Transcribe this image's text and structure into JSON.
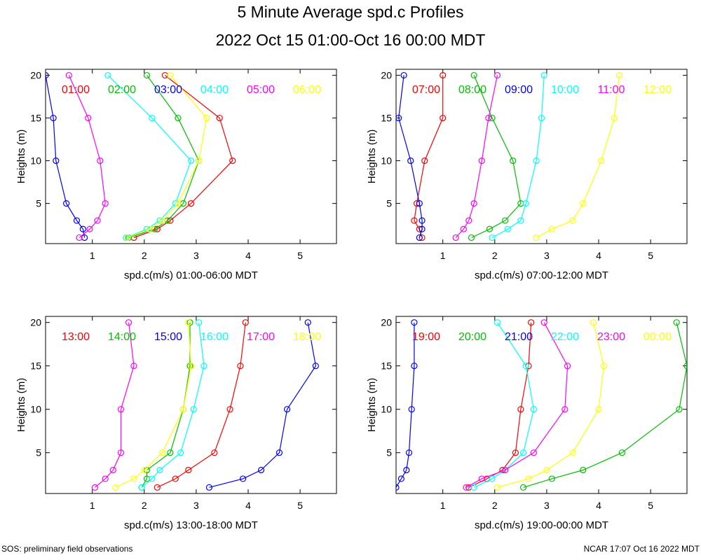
{
  "title": "5 Minute Average spd.c Profiles",
  "subtitle": "2022 Oct 15 01:00-Oct 16 00:00 MDT",
  "footer_left": "SOS: preliminary field observations",
  "footer_right": "NCAR 17:07 Oct 16 2022 MDT",
  "colors": [
    "#ff0000",
    "#00c000",
    "#0000ff",
    "#00ffff",
    "#ff00ff",
    "#ffff00"
  ],
  "chart_data": [
    {
      "type": "line",
      "xlabel": "spd.c(m/s) 01:00-06:00 MDT",
      "ylabel": "Heights (m)",
      "xlim": [
        0.1,
        5.7
      ],
      "ylim": [
        0.3,
        20.7
      ],
      "xticks": [
        1,
        2,
        3,
        4,
        5
      ],
      "yticks": [
        5,
        10,
        15,
        20
      ],
      "heights": [
        1,
        2,
        3,
        5,
        10,
        15,
        20
      ],
      "series": [
        {
          "name": "01:00",
          "values": [
            1.8,
            2.25,
            2.5,
            2.9,
            3.7,
            3.45,
            2.4
          ]
        },
        {
          "name": "02:00",
          "values": [
            1.7,
            2.2,
            2.45,
            2.75,
            3.05,
            2.65,
            2.05
          ]
        },
        {
          "name": "03:00",
          "values": [
            0.85,
            0.82,
            0.7,
            0.5,
            0.3,
            0.25,
            0.1
          ]
        },
        {
          "name": "04:00",
          "values": [
            1.65,
            2.05,
            2.3,
            2.6,
            2.9,
            2.15,
            1.3
          ]
        },
        {
          "name": "05:00",
          "values": [
            0.75,
            0.95,
            1.1,
            1.25,
            1.15,
            0.92,
            0.55
          ]
        },
        {
          "name": "06:00",
          "values": [
            1.68,
            2.1,
            2.35,
            2.65,
            3.05,
            3.2,
            2.5
          ]
        }
      ]
    },
    {
      "type": "line",
      "xlabel": "spd.c(m/s) 07:00-12:00 MDT",
      "ylabel": "Heights (m)",
      "xlim": [
        0.1,
        5.7
      ],
      "ylim": [
        0.3,
        20.7
      ],
      "xticks": [
        1,
        2,
        3,
        4,
        5
      ],
      "yticks": [
        5,
        10,
        15,
        20
      ],
      "heights": [
        1,
        2,
        3,
        5,
        10,
        15,
        20
      ],
      "series": [
        {
          "name": "07:00",
          "values": [
            0.6,
            0.55,
            0.45,
            0.5,
            0.65,
            1.0,
            1.0
          ]
        },
        {
          "name": "08:00",
          "values": [
            1.55,
            1.9,
            2.2,
            2.5,
            2.35,
            1.95,
            1.6
          ]
        },
        {
          "name": "09:00",
          "values": [
            0.55,
            0.6,
            0.6,
            0.55,
            0.38,
            0.15,
            0.25
          ]
        },
        {
          "name": "10:00",
          "values": [
            1.95,
            2.25,
            2.5,
            2.6,
            2.8,
            2.9,
            2.95
          ]
        },
        {
          "name": "11:00",
          "values": [
            1.25,
            1.4,
            1.5,
            1.6,
            1.75,
            1.88,
            2.05
          ]
        },
        {
          "name": "12:00",
          "values": [
            2.8,
            3.1,
            3.5,
            3.7,
            4.05,
            4.3,
            4.4
          ]
        }
      ]
    },
    {
      "type": "line",
      "xlabel": "spd.c(m/s) 13:00-18:00 MDT",
      "ylabel": "Heights (m)",
      "xlim": [
        0.1,
        5.7
      ],
      "ylim": [
        0.3,
        20.7
      ],
      "xticks": [
        1,
        2,
        3,
        4,
        5
      ],
      "yticks": [
        5,
        10,
        15,
        20
      ],
      "heights": [
        1,
        2,
        3,
        5,
        10,
        15,
        20
      ],
      "series": [
        {
          "name": "13:00",
          "values": [
            2.25,
            2.6,
            2.85,
            3.35,
            3.65,
            3.85,
            3.95
          ]
        },
        {
          "name": "14:00",
          "values": [
            1.95,
            2.05,
            2.05,
            2.5,
            2.75,
            2.88,
            2.88
          ]
        },
        {
          "name": "15:00",
          "values": [
            3.25,
            3.9,
            4.25,
            4.6,
            4.75,
            5.3,
            5.15
          ]
        },
        {
          "name": "16:00",
          "values": [
            1.95,
            2.15,
            2.3,
            2.7,
            2.95,
            3.15,
            3.05
          ]
        },
        {
          "name": "17:00",
          "values": [
            1.05,
            1.25,
            1.4,
            1.55,
            1.55,
            1.8,
            1.7
          ]
        },
        {
          "name": "18:00",
          "values": [
            1.45,
            1.8,
            2.0,
            2.35,
            2.75,
            2.9,
            2.85
          ]
        }
      ]
    },
    {
      "type": "line",
      "xlabel": "spd.c(m/s) 19:00-00:00 MDT",
      "ylabel": "Heights (m)",
      "xlim": [
        0.1,
        5.7
      ],
      "ylim": [
        0.3,
        20.7
      ],
      "xticks": [
        1,
        2,
        3,
        4,
        5
      ],
      "yticks": [
        5,
        10,
        15,
        20
      ],
      "heights": [
        1,
        2,
        3,
        5,
        10,
        15,
        20
      ],
      "series": [
        {
          "name": "19:00",
          "values": [
            1.5,
            1.85,
            2.15,
            2.4,
            2.5,
            2.65,
            2.7
          ]
        },
        {
          "name": "20:00",
          "values": [
            2.55,
            3.1,
            3.7,
            4.45,
            5.55,
            5.7,
            5.5
          ]
        },
        {
          "name": "21:00",
          "values": [
            0.1,
            0.2,
            0.3,
            0.35,
            0.4,
            0.45,
            0.45
          ]
        },
        {
          "name": "22:00",
          "values": [
            1.6,
            1.95,
            2.2,
            2.55,
            2.75,
            2.6,
            2.05
          ]
        },
        {
          "name": "23:00",
          "values": [
            1.45,
            1.75,
            2.2,
            2.75,
            3.35,
            3.4,
            2.95
          ]
        },
        {
          "name": "00:00",
          "values": [
            2.05,
            2.65,
            3.0,
            3.5,
            4.0,
            4.1,
            3.9
          ]
        }
      ]
    }
  ]
}
